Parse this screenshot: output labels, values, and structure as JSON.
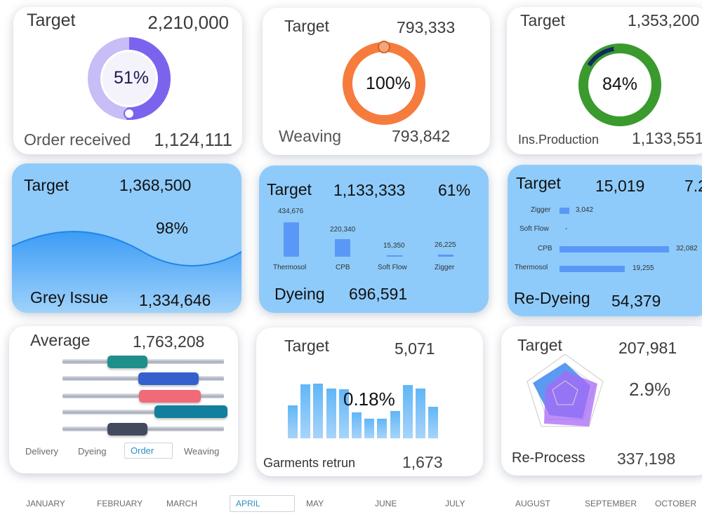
{
  "order": {
    "target_label": "Target",
    "target_value": "2,210,000",
    "percent": "51%",
    "fraction": 0.51,
    "actual_label": "Order received",
    "actual_value": "1,124,111"
  },
  "weaving": {
    "target_label": "Target",
    "target_value": "793,333",
    "percent": "100%",
    "fraction": 1.0,
    "actual_label": "Weaving",
    "actual_value": "793,842"
  },
  "production": {
    "target_label": "Target",
    "target_value": "1,353,200",
    "percent": "84%",
    "fraction": 0.84,
    "actual_label": "Ins.Production",
    "actual_value": "1,133,551"
  },
  "grey": {
    "target_label": "Target",
    "target_value": "1,368,500",
    "percent": "98%",
    "fraction": 0.98,
    "actual_label": "Grey Issue",
    "actual_value": "1,334,646"
  },
  "dyeing": {
    "target_label": "Target",
    "target_value": "1,133,333",
    "percent": "61%",
    "actual_label": "Dyeing",
    "actual_value": "696,591",
    "bars": [
      {
        "label": "Thermosol",
        "value": 434676,
        "value_text": "434,676"
      },
      {
        "label": "CPB",
        "value": 220340,
        "value_text": "220,340"
      },
      {
        "label": "Soft Flow",
        "value": 15350,
        "value_text": "15,350"
      },
      {
        "label": "Zigger",
        "value": 26225,
        "value_text": "26,225"
      }
    ]
  },
  "redyeing": {
    "target_label": "Target",
    "target_value": "15,019",
    "percent": "7.2",
    "actual_label": "Re-Dyeing",
    "actual_value": "54,379",
    "bars": [
      {
        "label": "Zigger",
        "value": 3042,
        "value_text": "3,042"
      },
      {
        "label": "Soft Flow",
        "value": 0,
        "value_text": "-"
      },
      {
        "label": "CPB",
        "value": 32082,
        "value_text": "32,082"
      },
      {
        "label": "Thermosol",
        "value": 19255,
        "value_text": "19,255"
      }
    ]
  },
  "average": {
    "label": "Average",
    "value": "1,763,208",
    "options": [
      "Delivery",
      "Dyeing",
      "Order",
      "Weaving"
    ],
    "selected": "Order",
    "sliders": [
      {
        "color": "#1f8f8c"
      },
      {
        "color": "#3360cc"
      },
      {
        "color": "#f06a78"
      },
      {
        "color": "#127f9e"
      },
      {
        "color": "#444a5e"
      }
    ]
  },
  "garments": {
    "target_label": "Target",
    "target_value": "5,071",
    "percent": "0.18%",
    "actual_label": "Garments retrun",
    "actual_value": "1,673",
    "columns": [
      46,
      76,
      77,
      70,
      69,
      37,
      28,
      28,
      39,
      75,
      70,
      44
    ]
  },
  "reprocess": {
    "target_label": "Target",
    "target_value": "207,981",
    "percent": "2.9%",
    "actual_label": "Re-Process",
    "actual_value": "337,198"
  },
  "months": [
    "JANUARY",
    "FEBRUARY",
    "MARCH",
    "APRIL",
    "MAY",
    "JUNE",
    "JULY",
    "AUGUST",
    "SEPTEMBER",
    "OCTOBER"
  ],
  "selected_month": "APRIL",
  "colors": {
    "order_ring": "#7c63ee",
    "order_track": "#c8bdf7",
    "weaving_ring": "#f57c3c",
    "production_ring": "#3a9a2e",
    "production_tail": "#0f2a5c",
    "card_blue": "#8ecbfb",
    "bar_blue": "#5a98f7"
  }
}
